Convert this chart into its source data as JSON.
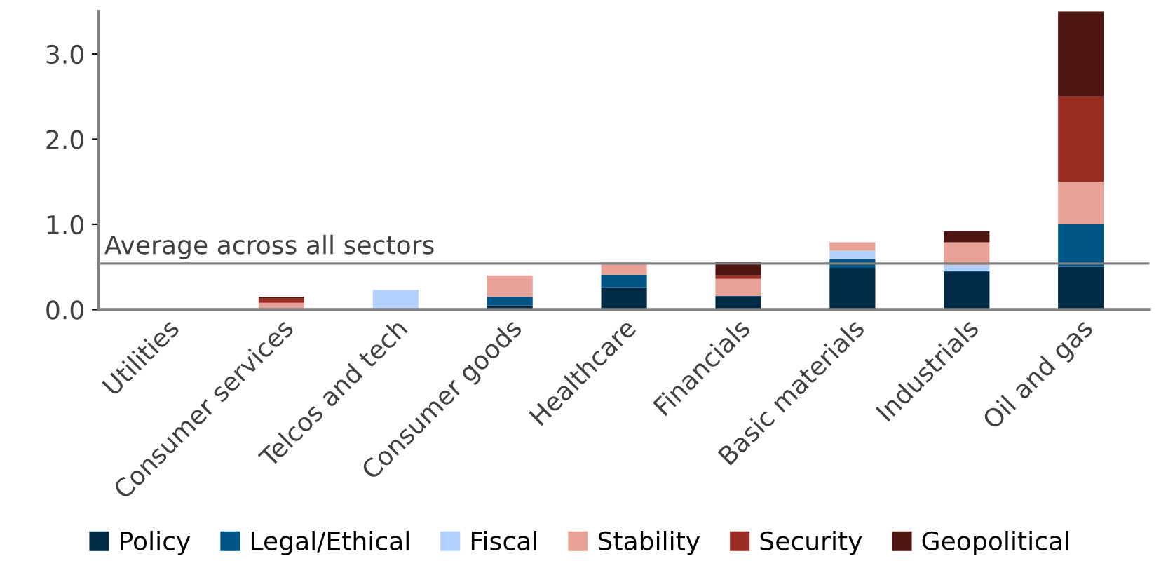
{
  "chart_data": {
    "type": "bar",
    "stacked": true,
    "categories": [
      "Utilities",
      "Consumer services",
      "Telcos and tech",
      "Consumer goods",
      "Healthcare",
      "Financials",
      "Basic materials",
      "Industrials",
      "Oil and gas"
    ],
    "series": [
      {
        "name": "Policy",
        "color": "#002a45",
        "values": [
          0,
          0,
          0,
          0.05,
          0.26,
          0.15,
          0.49,
          0.44,
          0.5
        ]
      },
      {
        "name": "Legal/Ethical",
        "color": "#005587",
        "values": [
          0,
          0,
          0,
          0.1,
          0.15,
          0.01,
          0.1,
          0.01,
          0.5
        ]
      },
      {
        "name": "Fiscal",
        "color": "#b3d1ff",
        "values": [
          0,
          0,
          0.23,
          0,
          0,
          0,
          0.1,
          0.07,
          0
        ]
      },
      {
        "name": "Stability",
        "color": "#e8a197",
        "values": [
          0,
          0.08,
          0,
          0.25,
          0.14,
          0.2,
          0.1,
          0.27,
          0.5
        ]
      },
      {
        "name": "Security",
        "color": "#9a2d22",
        "values": [
          0,
          0.05,
          0,
          0,
          0,
          0.04,
          0,
          0,
          1.0
        ]
      },
      {
        "name": "Geopolitical",
        "color": "#4d1611",
        "values": [
          0,
          0.02,
          0,
          0,
          0,
          0.16,
          0,
          0.13,
          1.0
        ]
      }
    ],
    "ylim": [
      0,
      3.5
    ],
    "yticks": [
      {
        "value": 0,
        "label": "0.0"
      },
      {
        "value": 1,
        "label": "1.0"
      },
      {
        "value": 2,
        "label": "2.0"
      },
      {
        "value": 3,
        "label": "3.0"
      }
    ],
    "ref_lines": [
      {
        "axis": "y",
        "value": 0.54,
        "label": "Average across all sectors",
        "color": "#7f7f7f"
      }
    ],
    "grid": false,
    "legend": "bottom"
  }
}
